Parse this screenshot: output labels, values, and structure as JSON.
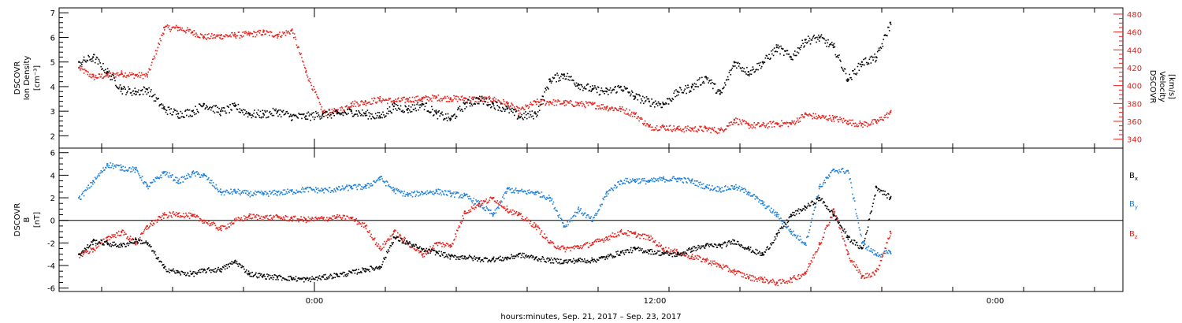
{
  "chart_data": [
    {
      "type": "scatter",
      "panel": "top",
      "ylabel_left": [
        "DSCOVR",
        "Ion Density",
        "[cm⁻³]"
      ],
      "ylabel_right": [
        "DSCOVR",
        "Velocity",
        "[km/s]"
      ],
      "ylim_left": [
        1.5,
        7.2
      ],
      "yticks_left": [
        2,
        3,
        4,
        5,
        6,
        7
      ],
      "ylim_right": [
        330,
        487
      ],
      "yticks_right": [
        340,
        360,
        380,
        400,
        420,
        440,
        460,
        480
      ],
      "colors": {
        "left": "#000000",
        "right": "#e8201a"
      },
      "series": [
        {
          "axis": "left",
          "x": [
            -8.3,
            -7.8,
            -7.3,
            -6.8,
            -6.3,
            -5.9,
            -5.3,
            -4.8,
            -4.3,
            -3.9,
            -3.3,
            -2.8,
            -2.3,
            -1.8,
            -1.3,
            -0.8,
            -0.3,
            0.3,
            0.8,
            1.3,
            1.8,
            2.3,
            2.8,
            3.3,
            3.8,
            4.3,
            4.8,
            5.3,
            5.8,
            6.3,
            6.8,
            7.2,
            7.8,
            8.3,
            8.8,
            9.3,
            9.8,
            10.3,
            10.8,
            11.3,
            11.8,
            12.3,
            12.8,
            13.3,
            13.8,
            14.3,
            14.8,
            15.3,
            15.8,
            16.3,
            16.8,
            17.3,
            17.8,
            18.3,
            18.8,
            19.3,
            19.8,
            20.3
          ],
          "y": [
            5.0,
            5.2,
            4.6,
            3.9,
            3.8,
            3.9,
            3.1,
            2.9,
            3.0,
            3.3,
            3.0,
            3.2,
            2.9,
            2.9,
            3.0,
            2.8,
            2.8,
            2.9,
            2.9,
            3.0,
            2.9,
            2.8,
            3.2,
            3.1,
            3.3,
            2.9,
            2.7,
            3.3,
            3.5,
            3.3,
            3.1,
            2.8,
            2.9,
            4.3,
            4.5,
            4.1,
            3.9,
            3.8,
            4.0,
            3.6,
            3.4,
            3.3,
            3.8,
            4.0,
            4.4,
            3.7,
            5.0,
            4.6,
            5.0,
            5.6,
            5.2,
            5.9,
            6.0,
            5.6,
            4.3,
            5.0,
            5.2,
            6.6
          ]
        },
        {
          "axis": "right",
          "x": [
            -8.3,
            -7.8,
            -7.3,
            -6.8,
            -6.3,
            -5.9,
            -5.3,
            -4.8,
            -4.3,
            -3.9,
            -3.3,
            -2.8,
            -2.3,
            -1.8,
            -1.3,
            -0.8,
            -0.3,
            0.3,
            0.8,
            1.3,
            1.8,
            2.3,
            2.8,
            3.3,
            3.8,
            4.3,
            4.8,
            5.3,
            5.8,
            6.3,
            6.8,
            7.2,
            7.8,
            8.3,
            8.8,
            9.3,
            9.8,
            10.3,
            10.8,
            11.3,
            11.8,
            12.3,
            12.8,
            13.3,
            13.8,
            14.3,
            14.8,
            15.3,
            15.8,
            16.3,
            16.8,
            17.3,
            17.8,
            18.3,
            18.8,
            19.3,
            19.8,
            20.3
          ],
          "y": [
            420,
            410,
            412,
            414,
            412,
            412,
            465,
            465,
            460,
            455,
            456,
            457,
            458,
            460,
            457,
            462,
            415,
            370,
            372,
            380,
            382,
            385,
            383,
            385,
            386,
            387,
            386,
            386,
            385,
            385,
            380,
            372,
            382,
            382,
            381,
            380,
            379,
            376,
            374,
            368,
            354,
            354,
            352,
            352,
            352,
            350,
            362,
            356,
            356,
            358,
            358,
            368,
            365,
            364,
            360,
            357,
            360,
            370
          ]
        }
      ]
    },
    {
      "type": "scatter",
      "panel": "bottom",
      "ylabel": [
        "DSCOVR",
        "B",
        "[nT]"
      ],
      "ylim": [
        -6.3,
        6.4
      ],
      "yticks": [
        -6,
        -4,
        -2,
        0,
        2,
        4,
        6
      ],
      "zero_line": 0,
      "legend": [
        "Bx",
        "By",
        "Bz"
      ],
      "legend_colors": [
        "#000000",
        "#1a7fdc",
        "#e8201a"
      ],
      "series": [
        {
          "name": "Bx",
          "x": [
            -8.3,
            -7.8,
            -7.3,
            -6.8,
            -6.3,
            -5.9,
            -5.3,
            -4.8,
            -4.3,
            -3.9,
            -3.3,
            -2.8,
            -2.3,
            -1.8,
            -1.3,
            -0.8,
            -0.3,
            0.3,
            0.8,
            1.3,
            1.8,
            2.3,
            2.8,
            3.3,
            3.8,
            4.3,
            4.8,
            5.3,
            5.8,
            6.3,
            6.8,
            7.2,
            7.8,
            8.3,
            8.8,
            9.3,
            9.8,
            10.3,
            10.8,
            11.3,
            11.8,
            12.3,
            12.8,
            13.3,
            13.8,
            14.3,
            14.8,
            15.3,
            15.8,
            16.3,
            16.8,
            17.3,
            17.8,
            18.3,
            18.8,
            19.3,
            19.8,
            20.3
          ],
          "y": [
            -3.0,
            -1.8,
            -2.0,
            -2.2,
            -1.7,
            -2.0,
            -4.2,
            -4.6,
            -4.7,
            -4.4,
            -4.3,
            -3.6,
            -4.7,
            -4.9,
            -5.0,
            -5.1,
            -5.2,
            -5.0,
            -4.8,
            -4.6,
            -4.3,
            -4.1,
            -1.5,
            -2.0,
            -2.6,
            -2.8,
            -3.2,
            -3.2,
            -3.4,
            -3.4,
            -3.3,
            -3.0,
            -3.3,
            -3.5,
            -3.6,
            -3.5,
            -3.5,
            -3.2,
            -2.8,
            -2.5,
            -2.7,
            -2.9,
            -3.0,
            -2.5,
            -2.2,
            -2.2,
            -1.8,
            -2.5,
            -3.0,
            -1.2,
            0.5,
            1.2,
            2.0,
            0.5,
            -1.5,
            -2.5,
            3.0,
            2.0
          ]
        },
        {
          "name": "By",
          "x": [
            -8.3,
            -7.8,
            -7.3,
            -6.8,
            -6.3,
            -5.9,
            -5.3,
            -4.8,
            -4.3,
            -3.9,
            -3.3,
            -2.8,
            -2.3,
            -1.8,
            -1.3,
            -0.8,
            -0.3,
            0.3,
            0.8,
            1.3,
            1.8,
            2.3,
            2.8,
            3.3,
            3.8,
            4.3,
            4.8,
            5.3,
            5.8,
            6.3,
            6.8,
            7.2,
            7.8,
            8.3,
            8.8,
            9.3,
            9.8,
            10.3,
            10.8,
            11.3,
            11.8,
            12.3,
            12.8,
            13.3,
            13.8,
            14.3,
            14.8,
            15.3,
            15.8,
            16.3,
            16.8,
            17.3,
            17.8,
            18.3,
            18.8,
            19.3,
            19.8,
            20.3
          ],
          "y": [
            2.0,
            3.5,
            5.0,
            4.7,
            4.5,
            3.0,
            4.3,
            3.5,
            4.2,
            4.0,
            2.5,
            2.6,
            2.4,
            2.4,
            2.5,
            2.6,
            2.8,
            2.7,
            2.8,
            3.0,
            3.0,
            3.8,
            2.7,
            2.3,
            2.5,
            2.6,
            2.4,
            2.2,
            1.5,
            0.5,
            2.8,
            2.6,
            2.5,
            2.0,
            -0.5,
            1.0,
            0.0,
            2.5,
            3.5,
            3.6,
            3.5,
            3.7,
            3.7,
            3.5,
            3.0,
            2.8,
            3.0,
            2.5,
            1.5,
            0.5,
            -1.0,
            -2.0,
            3.0,
            4.5,
            4.4,
            -2.0,
            -3.0,
            -2.8
          ]
        },
        {
          "name": "Bz",
          "x": [
            -8.3,
            -7.8,
            -7.3,
            -6.8,
            -6.3,
            -5.9,
            -5.3,
            -4.8,
            -4.3,
            -3.9,
            -3.3,
            -2.8,
            -2.3,
            -1.8,
            -1.3,
            -0.8,
            -0.3,
            0.3,
            0.8,
            1.3,
            1.8,
            2.3,
            2.8,
            3.3,
            3.8,
            4.3,
            4.8,
            5.3,
            5.8,
            6.3,
            6.8,
            7.2,
            7.8,
            8.3,
            8.8,
            9.3,
            9.8,
            10.3,
            10.8,
            11.3,
            11.8,
            12.3,
            12.8,
            13.3,
            13.8,
            14.3,
            14.8,
            15.3,
            15.8,
            16.3,
            16.8,
            17.3,
            17.8,
            18.3,
            18.8,
            19.3,
            19.8,
            20.3
          ],
          "y": [
            -3.0,
            -2.5,
            -1.5,
            -1.0,
            -2.0,
            -0.5,
            0.5,
            0.6,
            0.4,
            0.0,
            -0.7,
            0.0,
            0.4,
            0.3,
            0.3,
            0.2,
            0.1,
            0.2,
            0.3,
            0.2,
            -0.5,
            -2.5,
            -1.0,
            -2.0,
            -3.0,
            -2.0,
            -2.2,
            0.8,
            1.5,
            2.0,
            1.0,
            0.5,
            -0.5,
            -2.0,
            -2.5,
            -2.3,
            -2.0,
            -1.5,
            -1.0,
            -1.2,
            -1.5,
            -2.5,
            -2.8,
            -3.2,
            -3.5,
            -4.0,
            -4.5,
            -5.0,
            -5.2,
            -5.5,
            -5.2,
            -4.6,
            -2.0,
            1.0,
            -3.0,
            -5.0,
            -4.5,
            -1.0
          ]
        }
      ]
    }
  ],
  "xaxis": {
    "label": "hours:minutes, Sep. 21, 2017 – Sep. 23, 2017",
    "xlim": [
      -9,
      28.5
    ],
    "major_ticks": [
      0,
      12,
      24
    ],
    "major_labels": [
      "0:00",
      "12:00",
      "0:00"
    ],
    "minor_step": 2.5
  }
}
